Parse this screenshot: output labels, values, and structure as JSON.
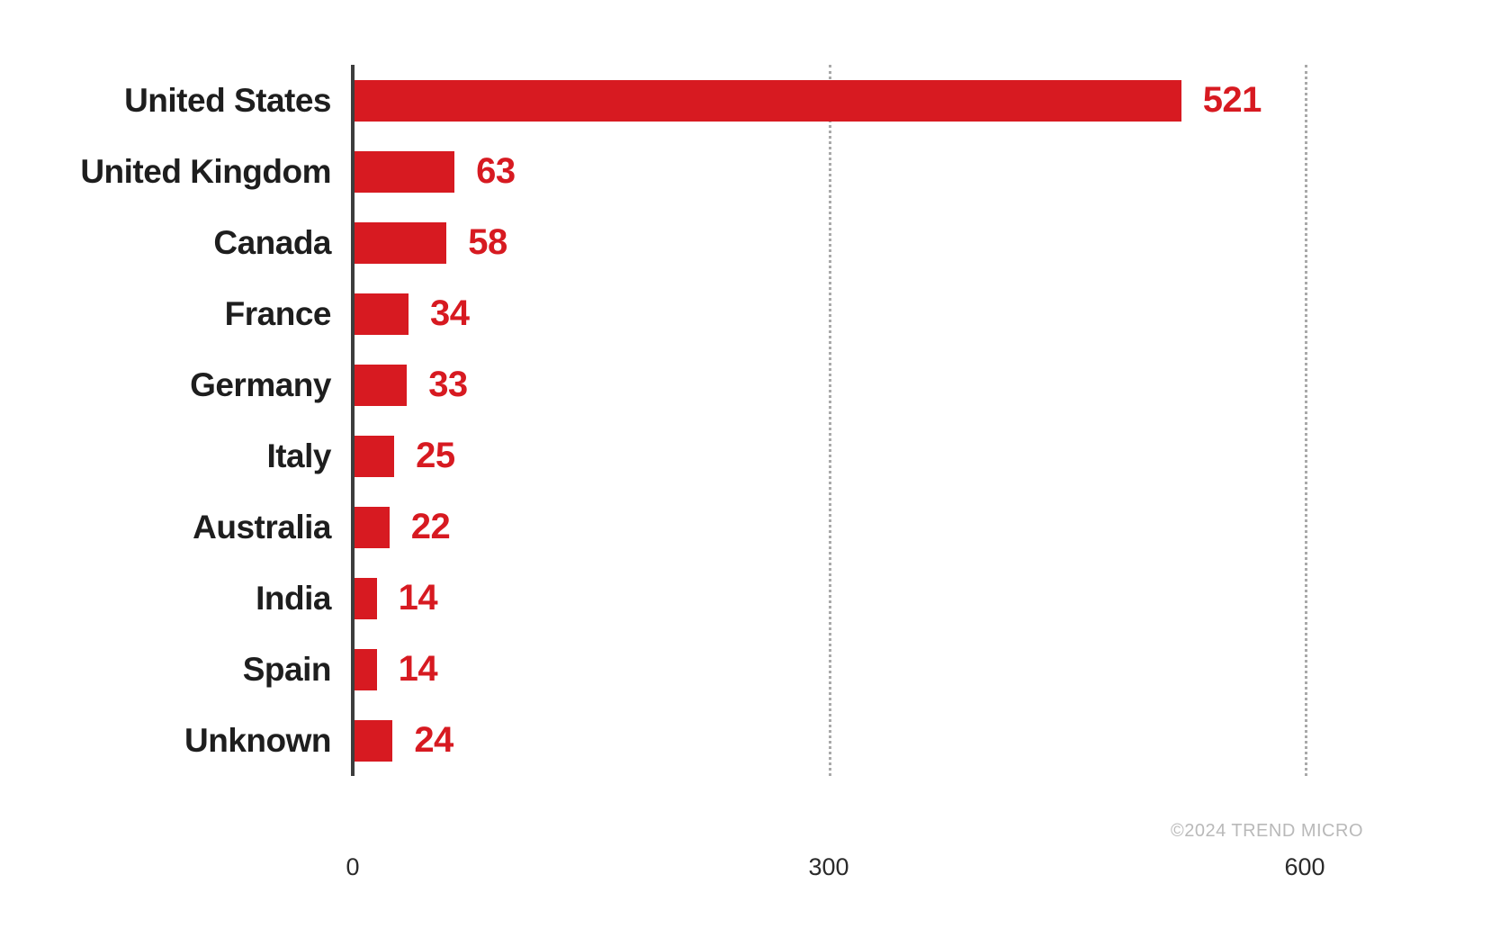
{
  "chart_data": {
    "type": "bar",
    "orientation": "horizontal",
    "title": "",
    "xlabel": "",
    "ylabel": "",
    "categories": [
      "United States",
      "United Kingdom",
      "Canada",
      "France",
      "Germany",
      "Italy",
      "Australia",
      "India",
      "Spain",
      "Unknown"
    ],
    "values": [
      521,
      63,
      58,
      34,
      33,
      25,
      22,
      14,
      14,
      24
    ],
    "xlim": [
      0,
      600
    ],
    "xticks": [
      0,
      300,
      600
    ],
    "grid": "vertical dotted gridlines at 300 and 600",
    "legend_position": "none",
    "bar_color": "#d71a21",
    "value_label_color": "#d71a21",
    "category_label_color": "#1e1e1e",
    "axis_line_color": "#3d3d3d",
    "gridline_color": "#a9a9a9",
    "tick_label_color": "#2b2b2b"
  },
  "footer": {
    "copyright": "©2024 TREND MICRO"
  }
}
